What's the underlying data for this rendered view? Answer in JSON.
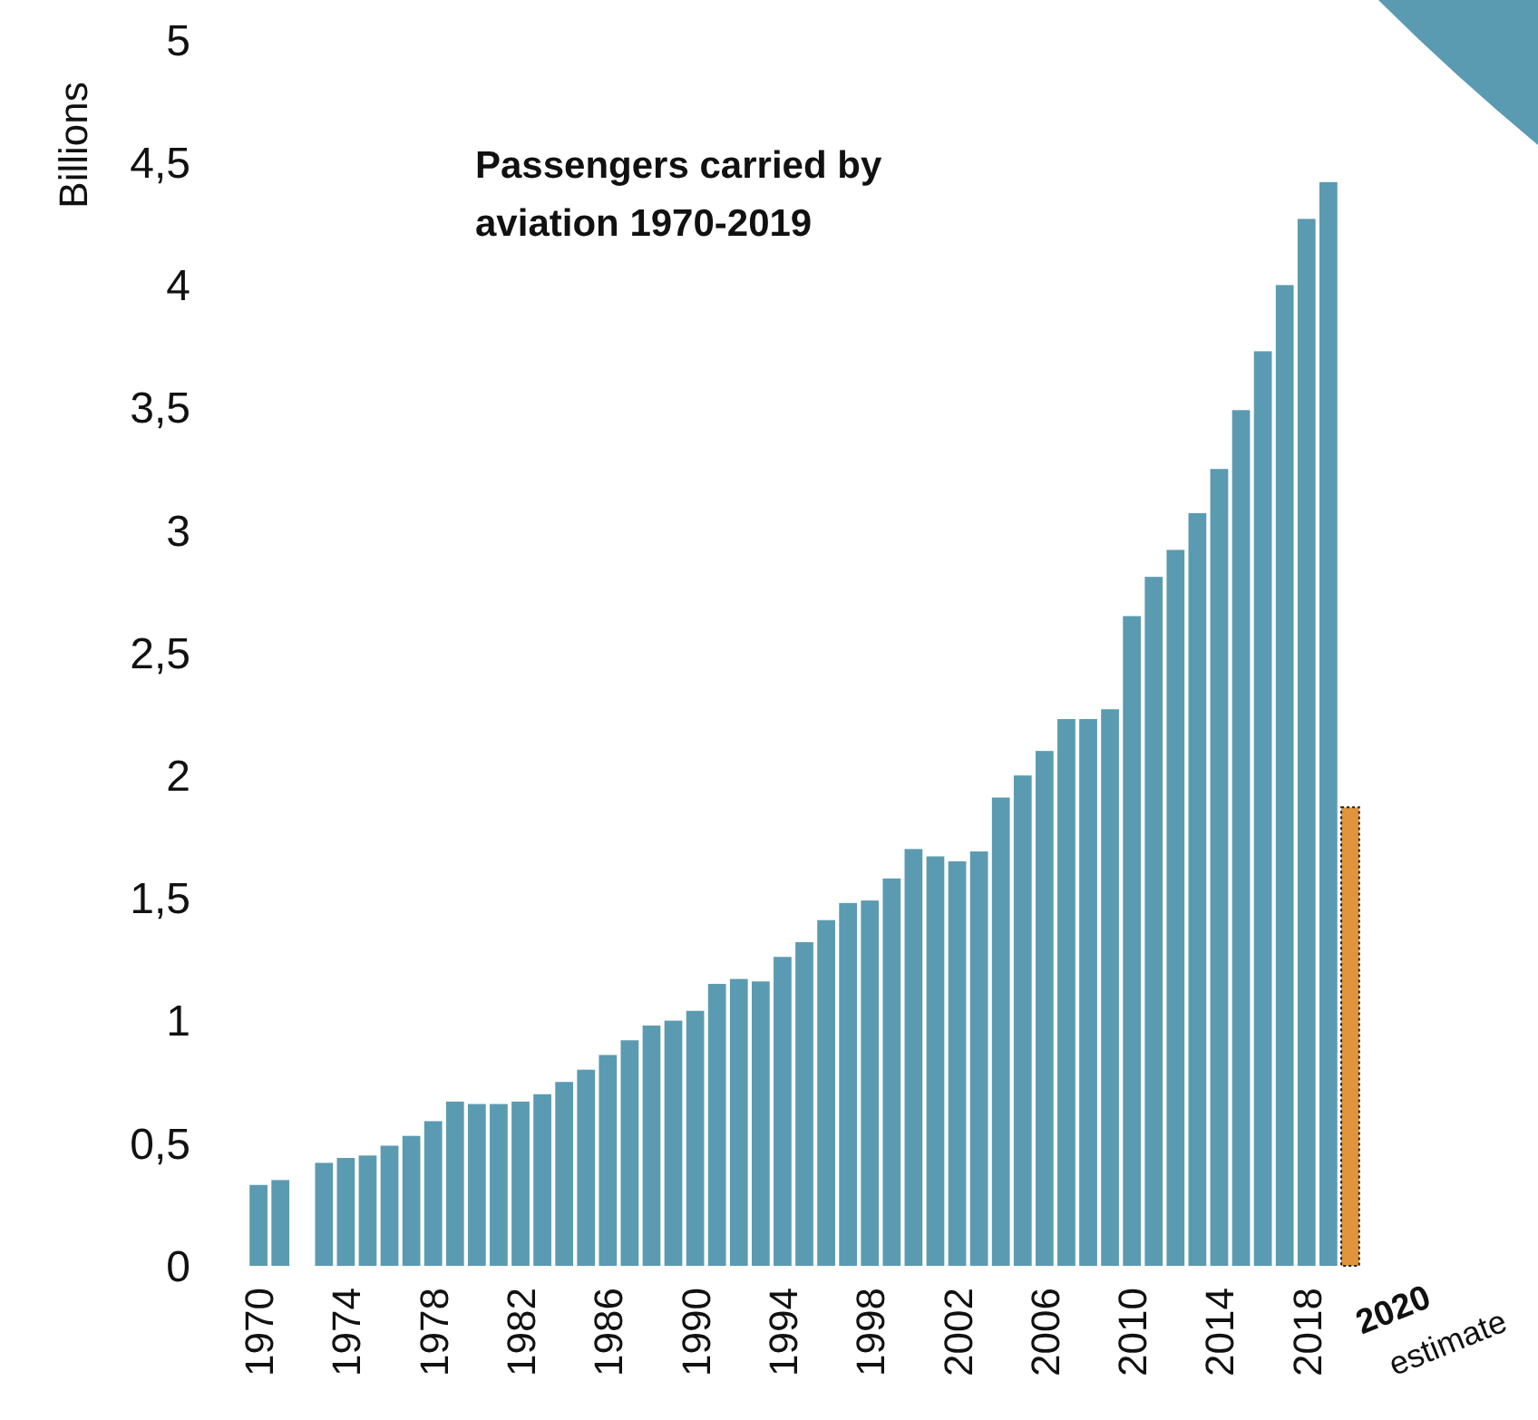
{
  "chart_data": {
    "type": "bar",
    "title": "Passengers carried by aviation 1970-2019",
    "ylabel": "Billions",
    "categories": [
      "1970",
      null,
      null,
      null,
      "1974",
      null,
      null,
      null,
      "1978",
      null,
      null,
      null,
      "1982",
      null,
      null,
      null,
      "1986",
      null,
      null,
      null,
      "1990",
      null,
      null,
      null,
      "1994",
      null,
      null,
      null,
      "1998",
      null,
      null,
      null,
      "2002",
      null,
      null,
      null,
      "2006",
      null,
      null,
      null,
      "2010",
      null,
      null,
      null,
      "2014",
      null,
      null,
      null,
      "2018",
      null,
      null
    ],
    "values": [
      0.33,
      0.35,
      null,
      0.42,
      0.44,
      0.45,
      0.49,
      0.53,
      0.59,
      0.67,
      0.66,
      0.66,
      0.67,
      0.7,
      0.75,
      0.8,
      0.86,
      0.92,
      0.98,
      1.0,
      1.04,
      1.15,
      1.17,
      1.16,
      1.26,
      1.32,
      1.41,
      1.48,
      1.49,
      1.58,
      1.7,
      1.67,
      1.65,
      1.69,
      1.91,
      2.0,
      2.1,
      2.23,
      2.23,
      2.27,
      2.65,
      2.81,
      2.92,
      3.07,
      3.25,
      3.49,
      3.73,
      4.0,
      4.27,
      4.42,
      1.87
    ],
    "colors": [
      "#5a9bb1",
      "#5a9bb1",
      null,
      "#5a9bb1",
      "#5a9bb1",
      "#5a9bb1",
      "#5a9bb1",
      "#5a9bb1",
      "#5a9bb1",
      "#5a9bb1",
      "#5a9bb1",
      "#5a9bb1",
      "#5a9bb1",
      "#5a9bb1",
      "#5a9bb1",
      "#5a9bb1",
      "#5a9bb1",
      "#5a9bb1",
      "#5a9bb1",
      "#5a9bb1",
      "#5a9bb1",
      "#5a9bb1",
      "#5a9bb1",
      "#5a9bb1",
      "#5a9bb1",
      "#5a9bb1",
      "#5a9bb1",
      "#5a9bb1",
      "#5a9bb1",
      "#5a9bb1",
      "#5a9bb1",
      "#5a9bb1",
      "#5a9bb1",
      "#5a9bb1",
      "#5a9bb1",
      "#5a9bb1",
      "#5a9bb1",
      "#5a9bb1",
      "#5a9bb1",
      "#5a9bb1",
      "#5a9bb1",
      "#5a9bb1",
      "#5a9bb1",
      "#5a9bb1",
      "#5a9bb1",
      "#5a9bb1",
      "#5a9bb1",
      "#5a9bb1",
      "#5a9bb1",
      "#5a9bb1",
      "#e0953c"
    ],
    "ylim": [
      0,
      5
    ],
    "yticks": [
      0,
      {
        "value": 0.5,
        "label": "0,5"
      },
      1,
      {
        "value": 1.5,
        "label": "1,5"
      },
      2,
      {
        "value": 2.5,
        "label": "2,5"
      },
      3,
      {
        "value": 3.5,
        "label": "3,5"
      },
      4,
      {
        "value": 4.5,
        "label": "4,5"
      },
      5
    ],
    "annotations": [
      "2020",
      "estimate"
    ],
    "grid": false
  }
}
